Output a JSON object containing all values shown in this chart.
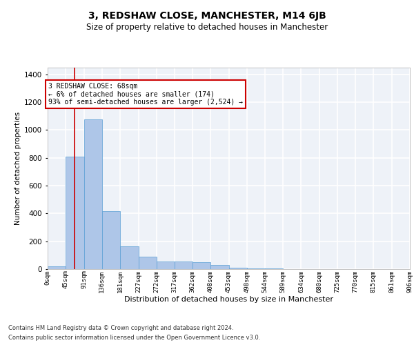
{
  "title": "3, REDSHAW CLOSE, MANCHESTER, M14 6JB",
  "subtitle": "Size of property relative to detached houses in Manchester",
  "xlabel": "Distribution of detached houses by size in Manchester",
  "ylabel": "Number of detached properties",
  "bar_color": "#aec6e8",
  "bar_edge_color": "#5a9fd4",
  "background_color": "#eef2f8",
  "grid_color": "#ffffff",
  "bin_edges": [
    0,
    45,
    91,
    136,
    181,
    227,
    272,
    317,
    362,
    408,
    453,
    498,
    544,
    589,
    634,
    680,
    725,
    770,
    815,
    861,
    906
  ],
  "bar_heights": [
    20,
    810,
    1075,
    415,
    165,
    90,
    55,
    55,
    50,
    30,
    8,
    4,
    3,
    2,
    1,
    1,
    0,
    0,
    0,
    0
  ],
  "tick_labels": [
    "0sqm",
    "45sqm",
    "91sqm",
    "136sqm",
    "181sqm",
    "227sqm",
    "272sqm",
    "317sqm",
    "362sqm",
    "408sqm",
    "453sqm",
    "498sqm",
    "544sqm",
    "589sqm",
    "634sqm",
    "680sqm",
    "725sqm",
    "770sqm",
    "815sqm",
    "861sqm",
    "906sqm"
  ],
  "ylim": [
    0,
    1450
  ],
  "yticks": [
    0,
    200,
    400,
    600,
    800,
    1000,
    1200,
    1400
  ],
  "property_line_x": 68,
  "annotation_text": "3 REDSHAW CLOSE: 68sqm\n← 6% of detached houses are smaller (174)\n93% of semi-detached houses are larger (2,524) →",
  "annotation_box_color": "#ffffff",
  "annotation_box_edge": "#cc0000",
  "footer_line1": "Contains HM Land Registry data © Crown copyright and database right 2024.",
  "footer_line2": "Contains public sector information licensed under the Open Government Licence v3.0."
}
